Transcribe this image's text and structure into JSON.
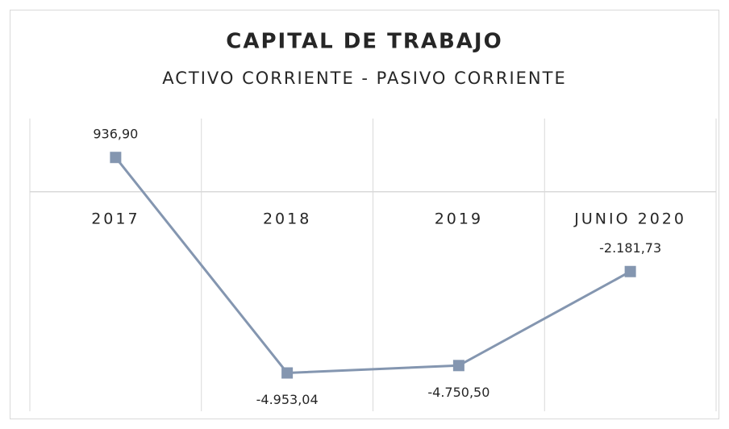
{
  "chart_data": {
    "type": "line",
    "title": "CAPITAL DE TRABAJO",
    "subtitle": "ACTIVO CORRIENTE - PASIVO CORRIENTE",
    "categories": [
      "2017",
      "2018",
      "2019",
      "JUNIO 2020"
    ],
    "series": [
      {
        "color": "#8496b0",
        "values": [
          936.9,
          -4953.04,
          -4750.5,
          -2181.73
        ],
        "value_labels": [
          "936,90",
          "-4.953,04",
          "-4.750,50",
          "-2.181,73"
        ]
      }
    ],
    "ylim": [
      -6000,
      2000
    ]
  }
}
